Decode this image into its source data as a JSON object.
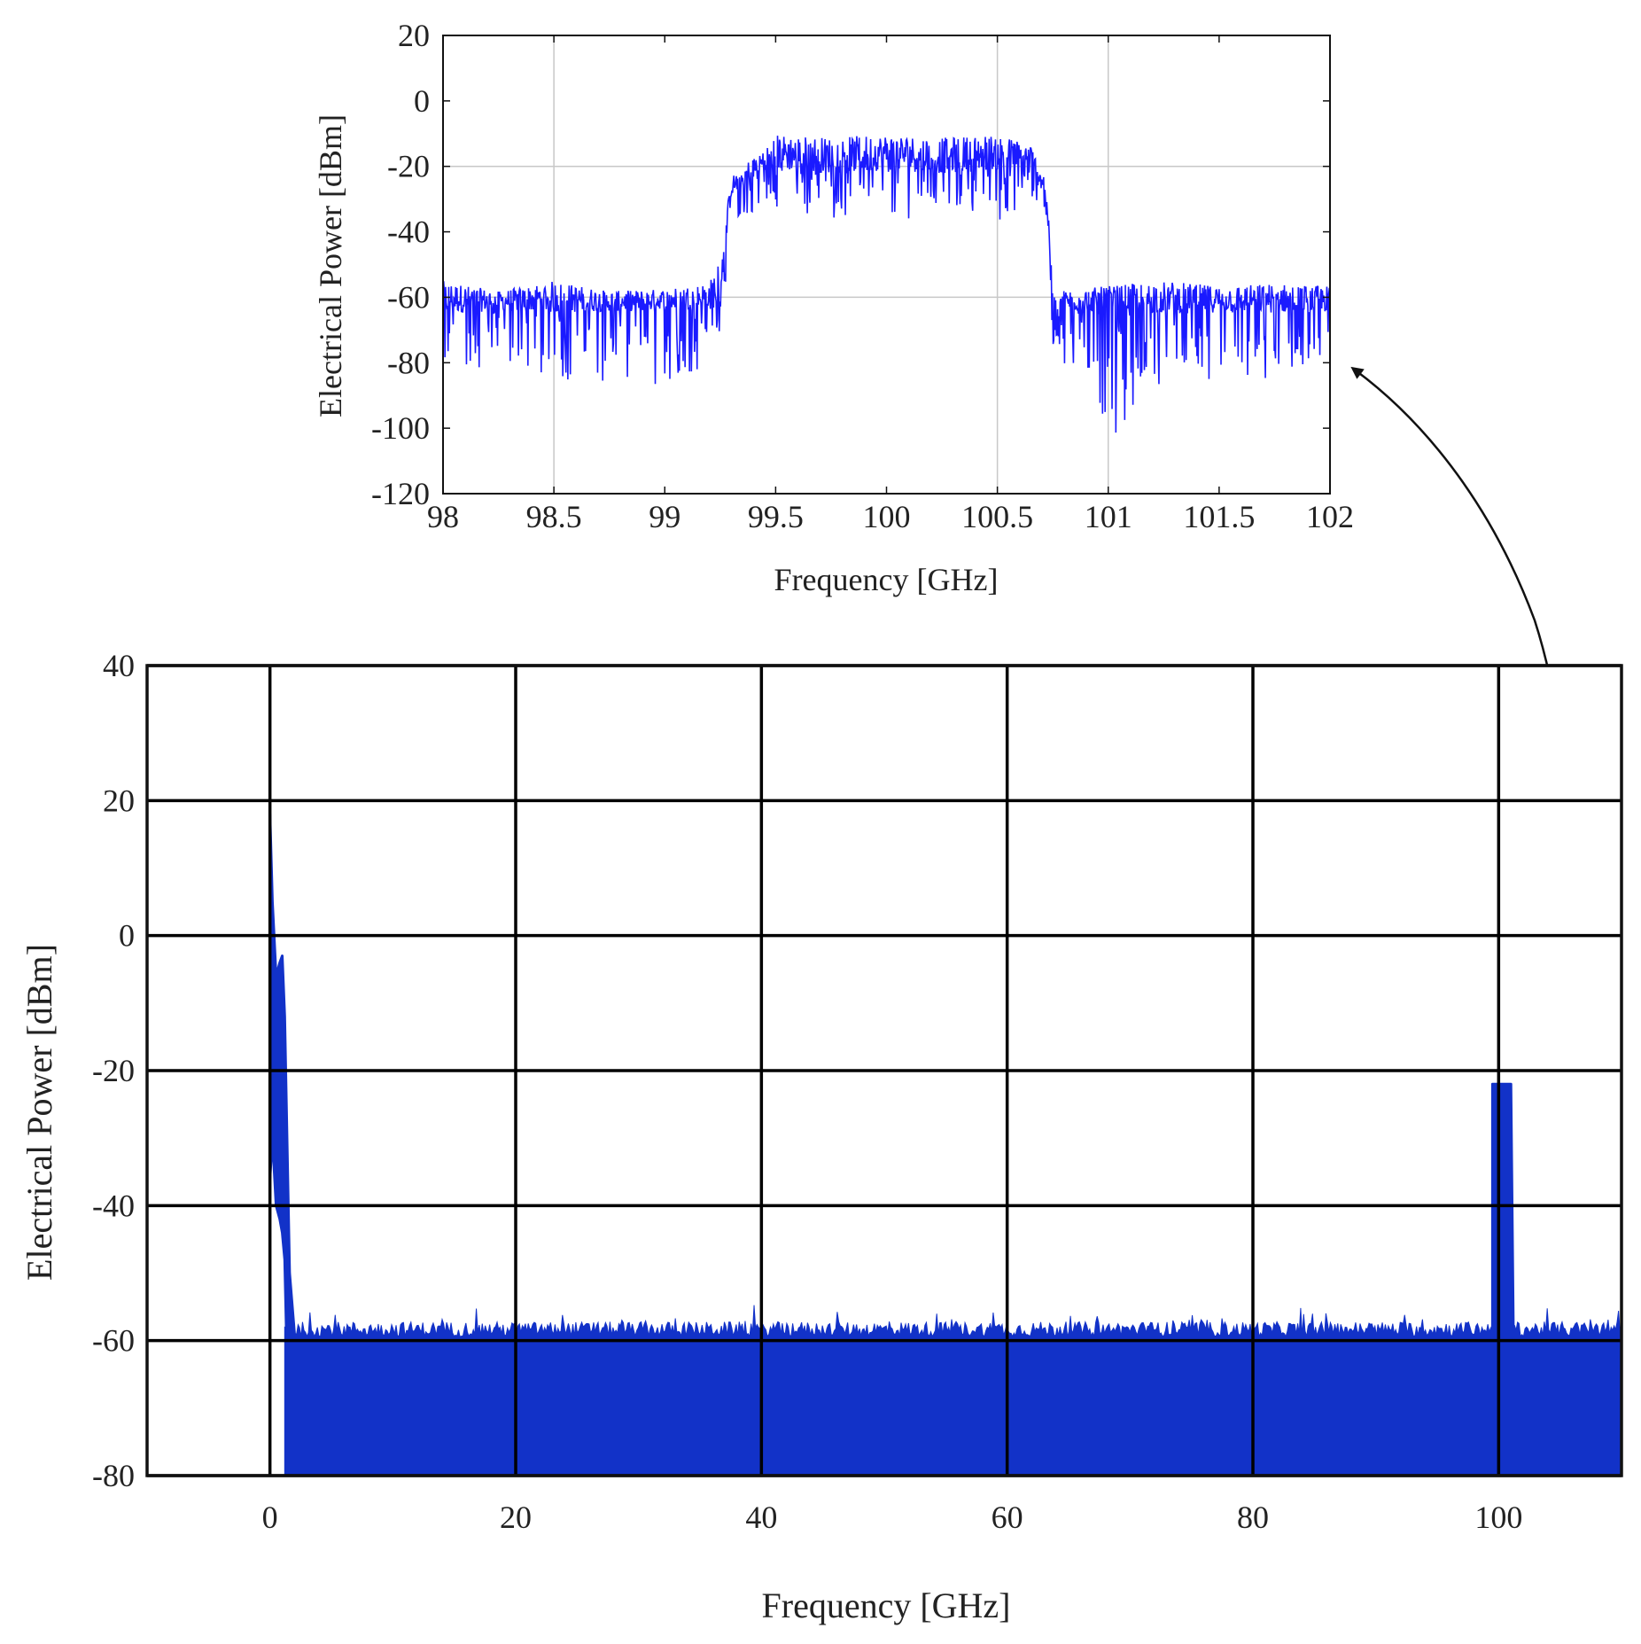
{
  "chart_data": [
    {
      "id": "inset",
      "type": "line",
      "xlabel": "Frequency [GHz]",
      "ylabel": "Electrical Power [dBm]",
      "xlim": [
        98,
        102
      ],
      "ylim": [
        -120,
        20
      ],
      "xticks": [
        98,
        98.5,
        99,
        99.5,
        100,
        100.5,
        101,
        101.5,
        102
      ],
      "yticks": [
        20,
        0,
        -20,
        -40,
        -60,
        -80,
        -100,
        -120
      ],
      "xgrid": [
        98.5,
        100.5,
        101
      ],
      "ygrid": [
        -20,
        -60
      ],
      "grid": true,
      "line_color": "#1a1aff",
      "series": [
        {
          "x": [
            98.0,
            98.25,
            98.5,
            98.75,
            99.0,
            99.2,
            99.25,
            99.3,
            99.5,
            99.75,
            100.0,
            100.25,
            100.5,
            100.65,
            100.72,
            100.75,
            101.0,
            101.25,
            101.5,
            101.75,
            102.0
          ],
          "upper": [
            -53,
            -57,
            -53,
            -57,
            -56,
            -54,
            -45,
            -22,
            -8,
            -9,
            -8,
            -9,
            -8,
            -11,
            -22,
            -57,
            -55,
            -53,
            -55,
            -54,
            -55
          ],
          "lower": [
            -88,
            -82,
            -85,
            -87,
            -88,
            -80,
            -70,
            -40,
            -33,
            -36,
            -36,
            -36,
            -38,
            -30,
            -40,
            -75,
            -104,
            -85,
            -90,
            -85,
            -80
          ],
          "center": [
            -63,
            -63,
            -63,
            -63,
            -63,
            -62,
            -60,
            -28,
            -19,
            -20,
            -19,
            -20,
            -19,
            -21,
            -28,
            -63,
            -63,
            -63,
            -63,
            -63,
            -63
          ]
        }
      ]
    },
    {
      "id": "main",
      "type": "area",
      "xlabel": "Frequency [GHz]",
      "ylabel": "Electrical Power [dBm]",
      "xlim": [
        -10,
        110
      ],
      "ylim": [
        -80,
        40
      ],
      "xticks": [
        0,
        20,
        40,
        60,
        80,
        100
      ],
      "yticks": [
        40,
        20,
        0,
        -20,
        -40,
        -60,
        -80
      ],
      "grid": true,
      "fill_color": "#1232c8",
      "noise_floor": -59,
      "floor": -80,
      "series": [
        {
          "x": [
            0,
            0.2,
            0.5,
            0.8,
            1.0,
            1.2,
            1.6,
            2.0
          ],
          "upper": [
            18,
            5,
            -6,
            -4,
            -3,
            -12,
            -50,
            -59
          ],
          "lower": [
            -36,
            -30,
            -40,
            -42,
            -44,
            -48,
            -80,
            -80
          ]
        },
        {
          "x": [
            99.5,
            99.8,
            100.0,
            100.5,
            101.0,
            101.2
          ],
          "upper": [
            -22,
            -22,
            -22,
            -22,
            -22,
            -59
          ],
          "lower": [
            -80,
            -80,
            -80,
            -80,
            -80,
            -80
          ]
        }
      ]
    }
  ]
}
